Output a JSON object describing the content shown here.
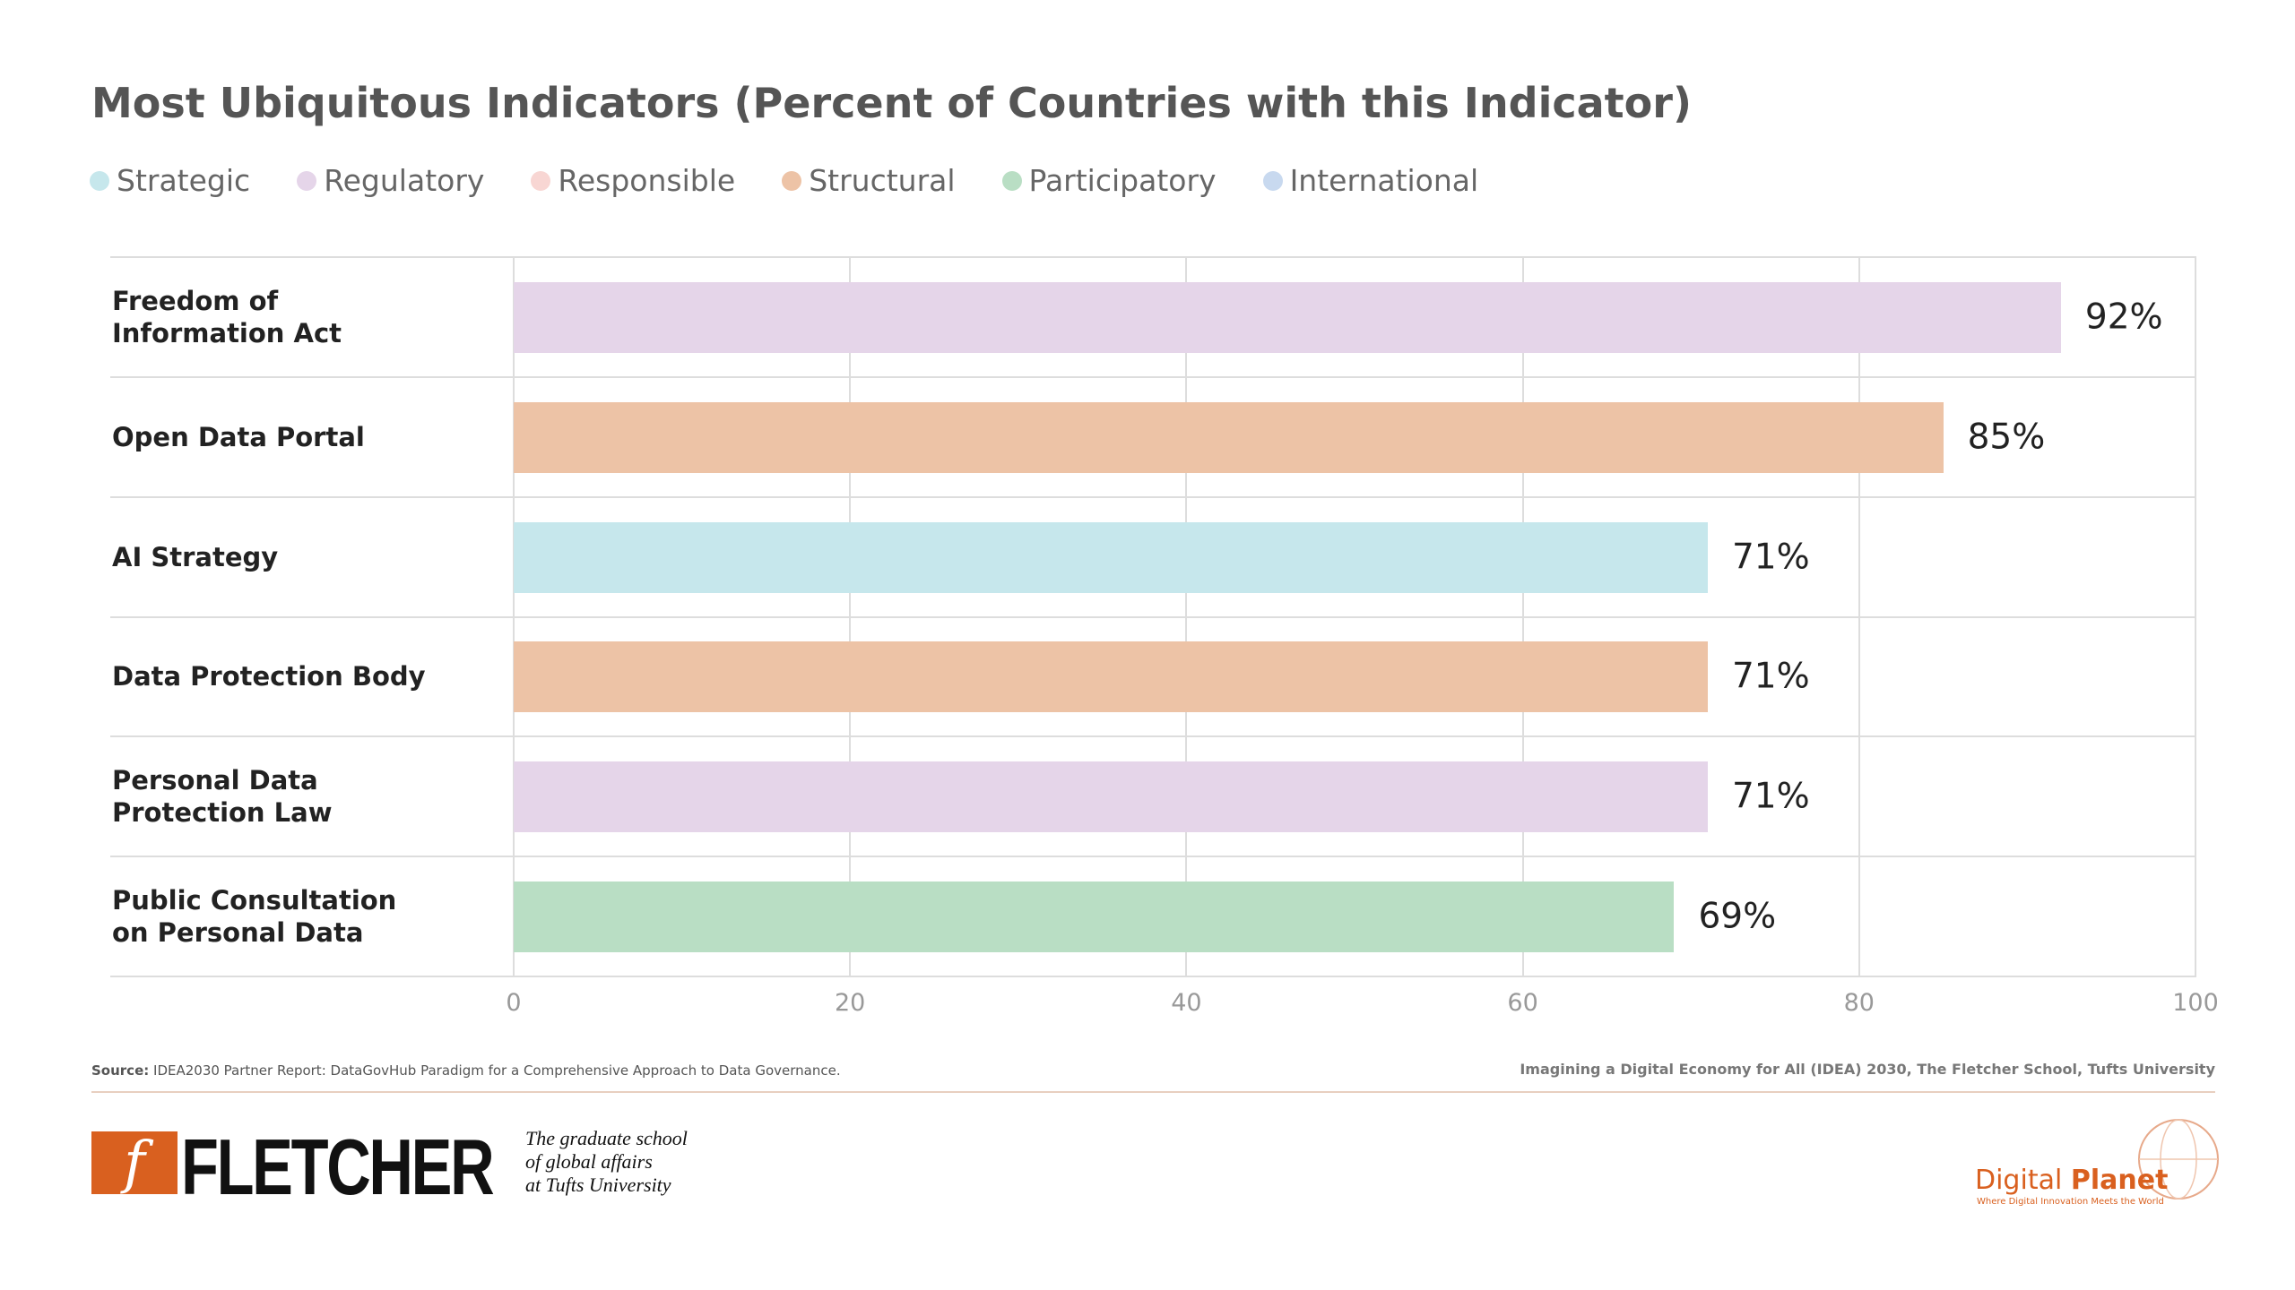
{
  "chart_data": {
    "type": "hbar",
    "title": "Most Ubiquitous Indicators (Percent of Countries with this Indicator)",
    "legend": [
      {
        "name": "Strategic",
        "color": "#c6e7ec"
      },
      {
        "name": "Regulatory",
        "color": "#e5d5e9"
      },
      {
        "name": "Responsible",
        "color": "#f8d6d3"
      },
      {
        "name": "Structural",
        "color": "#edc3a6"
      },
      {
        "name": "Participatory",
        "color": "#b9dec4"
      },
      {
        "name": "International",
        "color": "#c8d9ef"
      }
    ],
    "categories": [
      "Freedom of\nInformation Act",
      "Open Data Portal",
      "AI Strategy",
      "Data Protection Body",
      "Personal Data\nProtection Law",
      "Public Consultation\non Personal Data"
    ],
    "values": [
      92,
      85,
      71,
      71,
      71,
      69
    ],
    "value_labels": [
      "92%",
      "85%",
      "71%",
      "71%",
      "71%",
      "69%"
    ],
    "colors": [
      "#e5d5e9",
      "#edc3a6",
      "#c6e7ec",
      "#edc3a6",
      "#e5d5e9",
      "#b9dec4"
    ],
    "xlim": [
      0,
      100
    ],
    "xticks": [
      0,
      20,
      40,
      60,
      80,
      100
    ],
    "grid": true
  },
  "footer": {
    "source_label": "Source:",
    "source": "IDEA2030 Partner Report: DataGovHub Paradigm for a Comprehensive Approach to Data Governance.",
    "credit": "Imagining a Digital Economy for All (IDEA) 2030, The Fletcher School, Tufts University"
  },
  "logos": {
    "fletcher": "FLETCHER",
    "fletcher_mark": "f",
    "tagline": "The graduate school\nof global affairs\nat Tufts University",
    "digital": "Digital",
    "planet": "Planet",
    "planet_tagline": "Where Digital Innovation Meets the World"
  }
}
